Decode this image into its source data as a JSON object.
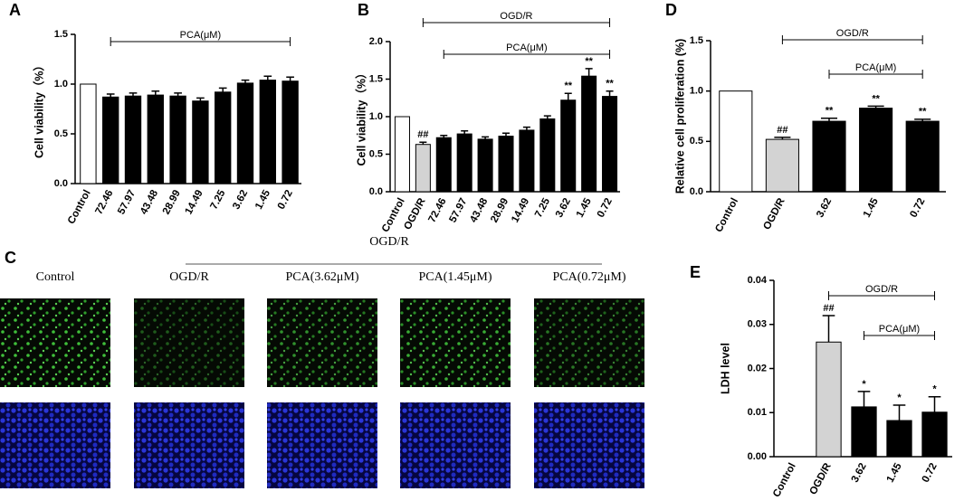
{
  "chart_data": [
    {
      "type": "bar",
      "panel": "A",
      "ylabel": "Cell viability（%）",
      "categories": [
        "Control",
        "72.46",
        "57.97",
        "43.48",
        "28.99",
        "14.49",
        "7.25",
        "3.62",
        "1.45",
        "0.72"
      ],
      "values": [
        1.0,
        0.87,
        0.88,
        0.89,
        0.88,
        0.83,
        0.92,
        1.01,
        1.04,
        1.03
      ],
      "errors": [
        null,
        0.03,
        0.03,
        0.04,
        0.03,
        0.03,
        0.04,
        0.03,
        0.04,
        0.04
      ],
      "colors": [
        "#ffffff",
        "#000000",
        "#000000",
        "#000000",
        "#000000",
        "#000000",
        "#000000",
        "#000000",
        "#000000",
        "#000000"
      ],
      "annotations": [
        "PCA(μM)"
      ],
      "ylim": [
        0,
        1.5
      ],
      "yticks": [
        {
          "value": 0,
          "label": "0.0"
        },
        {
          "value": 0.5,
          "label": "0.5"
        },
        {
          "value": 1,
          "label": "1.0"
        },
        {
          "value": 1.5,
          "label": "1.5"
        }
      ]
    },
    {
      "type": "bar",
      "panel": "B",
      "ylabel": "Cell viability（%）",
      "categories": [
        "Control",
        "OGD/R",
        "72.46",
        "57.97",
        "43.48",
        "28.99",
        "14.49",
        "7.25",
        "3.62",
        "1.45",
        "0.72"
      ],
      "values": [
        1.0,
        0.63,
        0.72,
        0.77,
        0.7,
        0.74,
        0.82,
        0.97,
        1.22,
        1.54,
        1.27
      ],
      "errors": [
        null,
        0.03,
        0.03,
        0.04,
        0.03,
        0.04,
        0.04,
        0.04,
        0.09,
        0.1,
        0.07
      ],
      "value_labels": [
        null,
        "##",
        null,
        null,
        null,
        null,
        null,
        null,
        "**",
        "**",
        "**"
      ],
      "colors": [
        "#ffffff",
        "#d3d3d3",
        "#000000",
        "#000000",
        "#000000",
        "#000000",
        "#000000",
        "#000000",
        "#000000",
        "#000000",
        "#000000"
      ],
      "annotations": [
        "OGD/R",
        "PCA(μM)"
      ],
      "ylim": [
        0,
        2
      ],
      "yticks": [
        {
          "value": 0,
          "label": "0.0"
        },
        {
          "value": 0.5,
          "label": "0.5"
        },
        {
          "value": 1,
          "label": "1.0"
        },
        {
          "value": 1.5,
          "label": "1.5"
        },
        {
          "value": 2,
          "label": "2.0"
        }
      ]
    },
    {
      "type": "bar",
      "panel": "D",
      "ylabel": "Relative cell proliferation (%)",
      "categories": [
        "Control",
        "OGD/R",
        "3.62",
        "1.45",
        "0.72"
      ],
      "values": [
        1.0,
        0.52,
        0.7,
        0.83,
        0.7
      ],
      "errors": [
        null,
        0.02,
        0.03,
        0.02,
        0.02
      ],
      "value_labels": [
        null,
        "##",
        "**",
        "**",
        "**"
      ],
      "colors": [
        "#ffffff",
        "#d3d3d3",
        "#000000",
        "#000000",
        "#000000"
      ],
      "annotations": [
        "OGD/R",
        "PCA(μM)"
      ],
      "ylim": [
        0,
        1.5
      ],
      "yticks": [
        {
          "value": 0,
          "label": "0.0"
        },
        {
          "value": 0.5,
          "label": "0.5"
        },
        {
          "value": 1,
          "label": "1.0"
        },
        {
          "value": 1.5,
          "label": "1.5"
        }
      ]
    },
    {
      "type": "bar",
      "panel": "E",
      "ylabel": "LDH level",
      "categories": [
        "Control",
        "OGD/R",
        "3.62",
        "1.45",
        "0.72"
      ],
      "values": [
        0,
        0.026,
        0.0113,
        0.0082,
        0.0101
      ],
      "errors": [
        null,
        0.006,
        0.0035,
        0.0035,
        0.0035
      ],
      "value_labels": [
        null,
        "##",
        "*",
        "*",
        "*"
      ],
      "colors": [
        "#ffffff",
        "#d3d3d3",
        "#000000",
        "#000000",
        "#000000"
      ],
      "annotations": [
        "OGD/R",
        "PCA(μM)"
      ],
      "ylim": [
        0,
        0.04
      ],
      "yticks": [
        {
          "value": 0,
          "label": "0.00"
        },
        {
          "value": 0.01,
          "label": "0.01"
        },
        {
          "value": 0.02,
          "label": "0.02"
        },
        {
          "value": 0.03,
          "label": "0.03"
        },
        {
          "value": 0.04,
          "label": "0.04"
        }
      ]
    }
  ],
  "panel_c": {
    "label": "C",
    "header": "OGD/R",
    "columns": [
      "Control",
      "OGD/R",
      "PCA(3.62μM)",
      "PCA(1.45μM)",
      "PCA(0.72μM)"
    ]
  }
}
